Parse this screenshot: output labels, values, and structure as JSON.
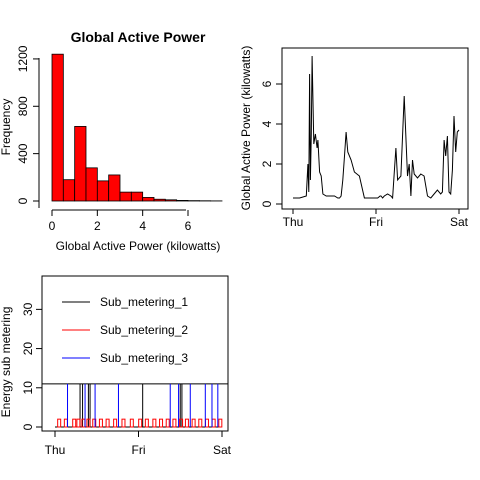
{
  "chart_data": [
    {
      "type": "bar",
      "title": "Global Active Power",
      "xlabel": "Global Active Power (kilowatts)",
      "ylabel": "Frequency",
      "bin_width": 0.5,
      "bin_starts": [
        0,
        0.5,
        1,
        1.5,
        2,
        2.5,
        3,
        3.5,
        4,
        4.5,
        5,
        5.5,
        6,
        6.5,
        7
      ],
      "values": [
        1240,
        180,
        630,
        280,
        170,
        220,
        75,
        75,
        30,
        15,
        10,
        5,
        3,
        2,
        1
      ],
      "xlim": [
        0,
        7.5
      ],
      "ylim": [
        0,
        1250
      ],
      "xticks": [
        0,
        2,
        4,
        6
      ],
      "yticks": [
        0,
        400,
        800,
        1200
      ],
      "bar_color": "#ff0000"
    },
    {
      "type": "line",
      "title": "",
      "xlabel": "",
      "ylabel": "Global Active Power (kilowatts)",
      "xlim": [
        0,
        2
      ],
      "ylim": [
        0,
        7.6
      ],
      "xticks": [
        0,
        1,
        2
      ],
      "xtick_labels": [
        "Thu",
        "Fri",
        "Sat"
      ],
      "yticks": [
        0,
        2,
        4,
        6
      ],
      "series": [
        {
          "color": "#000000",
          "x": [
            0.0,
            0.08,
            0.16,
            0.18,
            0.19,
            0.2,
            0.21,
            0.22,
            0.23,
            0.25,
            0.27,
            0.29,
            0.3,
            0.32,
            0.34,
            0.36,
            0.4,
            0.46,
            0.5,
            0.54,
            0.56,
            0.58,
            0.6,
            0.62,
            0.64,
            0.66,
            0.7,
            0.74,
            0.8,
            0.86,
            0.92,
            0.98,
            1.02,
            1.05,
            1.06,
            1.08,
            1.1,
            1.14,
            1.18,
            1.2,
            1.22,
            1.24,
            1.26,
            1.3,
            1.34,
            1.38,
            1.4,
            1.42,
            1.44,
            1.46,
            1.5,
            1.54,
            1.58,
            1.62,
            1.66,
            1.7,
            1.74,
            1.78,
            1.8,
            1.82,
            1.84,
            1.86,
            1.88,
            1.9,
            1.92,
            1.94,
            1.96,
            1.98,
            2.0
          ],
          "y": [
            0.3,
            0.3,
            0.4,
            2.0,
            0.6,
            6.5,
            1.2,
            3.5,
            7.4,
            3.0,
            3.5,
            2.8,
            3.2,
            1.6,
            1.4,
            0.5,
            0.4,
            0.4,
            0.4,
            0.3,
            0.3,
            0.4,
            1.2,
            2.4,
            3.6,
            2.6,
            2.2,
            1.6,
            1.4,
            0.3,
            0.3,
            0.3,
            0.3,
            0.4,
            0.4,
            0.3,
            0.4,
            0.5,
            0.4,
            0.3,
            1.6,
            2.8,
            1.2,
            1.4,
            5.4,
            1.4,
            2.0,
            0.4,
            2.2,
            1.5,
            1.3,
            1.5,
            1.4,
            0.4,
            0.3,
            0.5,
            0.7,
            0.5,
            0.6,
            3.2,
            2.4,
            3.4,
            0.6,
            0.5,
            1.7,
            4.4,
            2.6,
            3.6,
            3.7
          ]
        }
      ]
    },
    {
      "type": "line",
      "title": "",
      "xlabel": "",
      "ylabel": "Energy sub metering",
      "xlim": [
        0,
        2
      ],
      "ylim": [
        0,
        38
      ],
      "xticks": [
        0,
        1,
        2
      ],
      "xtick_labels": [
        "Thu",
        "Fri",
        "Sat"
      ],
      "yticks": [
        0,
        10,
        20,
        30
      ],
      "series_names_source": "legend",
      "series": [
        {
          "name": "Sub_metering_1",
          "color": "#000000",
          "kind": "spikes",
          "x": [
            0.3,
            0.33,
            0.4,
            0.42,
            1.05,
            1.5,
            1.52
          ],
          "height": 11
        },
        {
          "name": "Sub_metering_2",
          "color": "#ff0000",
          "kind": "bumps",
          "x": [
            0.05,
            0.13,
            0.23,
            0.28,
            0.34,
            0.4,
            0.47,
            0.55,
            0.63,
            0.72,
            0.82,
            0.92,
            1.02,
            1.1,
            1.19,
            1.27,
            1.35,
            1.43,
            1.51,
            1.58,
            1.66,
            1.74,
            1.82,
            1.9,
            1.98
          ],
          "height": 2
        },
        {
          "name": "Sub_metering_3",
          "color": "#0000ff",
          "kind": "spikes",
          "x": [
            0.15,
            0.36,
            0.48,
            0.76,
            1.38,
            1.48,
            1.62,
            1.8,
            1.88,
            1.95
          ],
          "height": 11
        }
      ],
      "baseline": 11
    }
  ]
}
